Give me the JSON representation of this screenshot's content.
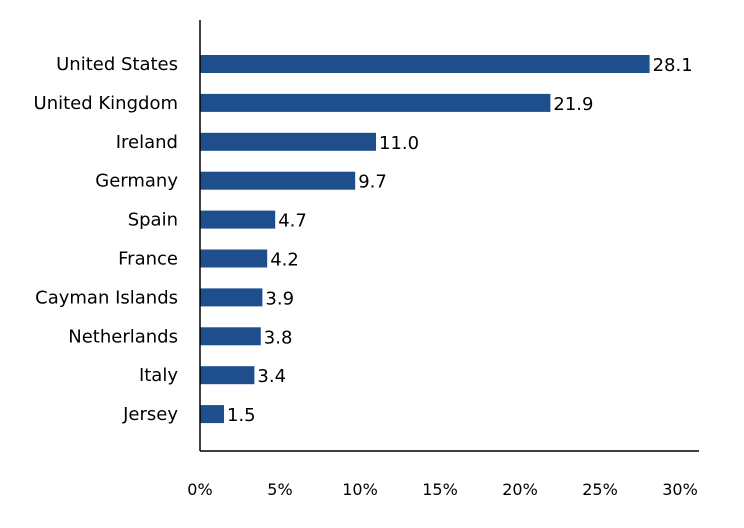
{
  "chart_data": {
    "type": "bar",
    "orientation": "horizontal",
    "categories": [
      "United States",
      "United Kingdom",
      "Ireland",
      "Germany",
      "Spain",
      "France",
      "Cayman Islands",
      "Netherlands",
      "Italy",
      "Jersey"
    ],
    "values": [
      28.1,
      21.9,
      11.0,
      9.7,
      4.7,
      4.2,
      3.9,
      3.8,
      3.4,
      1.5
    ],
    "value_labels": [
      "28.1",
      "21.9",
      "11.0",
      "9.7",
      "4.7",
      "4.2",
      "3.9",
      "3.8",
      "3.4",
      "1.5"
    ],
    "x_ticks": [
      0,
      5,
      10,
      15,
      20,
      25,
      30
    ],
    "x_tick_labels": [
      "0%",
      "5%",
      "10%",
      "15%",
      "20%",
      "25%",
      "30%"
    ],
    "xlim": [
      0,
      30
    ],
    "title": "",
    "xlabel": "",
    "ylabel": "",
    "grid": false,
    "bar_color": "#1f4e8c"
  }
}
